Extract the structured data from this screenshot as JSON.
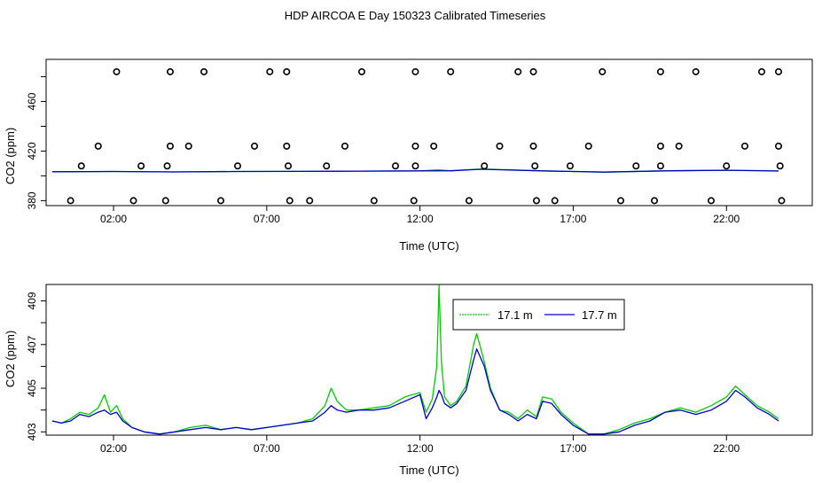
{
  "title": "HDP AIRCOA E  Day 150323  Calibrated Timeseries",
  "colors": {
    "green": "#00cc00",
    "blue": "#0000cc",
    "black": "#000000"
  },
  "chart_data": [
    {
      "type": "scatter",
      "xlabel": "Time (UTC)",
      "ylabel": "CO2 (ppm)",
      "xlim": [
        -0.2,
        24.8
      ],
      "ylim": [
        376,
        494
      ],
      "x_ticks": [
        2,
        7,
        12,
        17,
        22
      ],
      "x_tick_labels": [
        "02:00",
        "07:00",
        "12:00",
        "17:00",
        "22:00"
      ],
      "y_ticks": [
        380,
        420,
        460
      ],
      "y_tick_labels": [
        "380",
        "420",
        "460"
      ],
      "calibration_points": {
        "x": [
          2.1,
          3.85,
          4.95,
          7.1,
          7.65,
          10.1,
          11.85,
          13.0,
          15.2,
          15.7,
          17.95,
          19.85,
          21.0,
          23.15,
          23.7,
          1.5,
          3.85,
          4.45,
          6.6,
          7.65,
          9.55,
          11.85,
          12.45,
          14.6,
          15.7,
          17.5,
          19.85,
          20.45,
          22.6,
          23.7,
          0.95,
          2.9,
          3.75,
          6.05,
          7.7,
          8.95,
          11.2,
          11.85,
          14.1,
          15.75,
          16.9,
          19.05,
          19.85,
          22.0,
          23.75,
          0.6,
          2.65,
          3.7,
          5.5,
          7.75,
          8.4,
          10.5,
          11.8,
          13.6,
          15.8,
          16.4,
          18.55,
          19.65,
          21.5,
          23.8
        ],
        "y": [
          484,
          484,
          484,
          484,
          484,
          484,
          484,
          484,
          484,
          484,
          484,
          484,
          484,
          484,
          484,
          424,
          424,
          424,
          424,
          424,
          424,
          424,
          424,
          424,
          424,
          424,
          424,
          424,
          424,
          424,
          408,
          408,
          408,
          408,
          408,
          408,
          408,
          408,
          408,
          408,
          408,
          408,
          408,
          408,
          408,
          380,
          380,
          380,
          380,
          380,
          380,
          380,
          380,
          380,
          380,
          380,
          380,
          380,
          380,
          380
        ]
      },
      "series": [
        {
          "color": "#00cc00",
          "x": [
            0,
            2,
            4,
            6,
            8,
            10,
            12,
            12.6,
            13,
            14,
            16,
            18,
            20,
            22,
            23.7
          ],
          "y": [
            403.3,
            403.5,
            403.2,
            403.5,
            403.6,
            403.8,
            404.0,
            404.8,
            404.1,
            405.6,
            404.0,
            403.0,
            404.1,
            404.6,
            404.0
          ]
        },
        {
          "color": "#0000cc",
          "x": [
            0,
            2,
            4,
            6,
            8,
            10,
            12,
            13,
            14,
            16,
            18,
            20,
            22,
            23.7
          ],
          "y": [
            403.3,
            403.5,
            403.2,
            403.5,
            403.6,
            403.8,
            404.0,
            404.1,
            405.3,
            404.0,
            403.0,
            404.0,
            404.5,
            403.9
          ]
        }
      ]
    },
    {
      "type": "line",
      "xlabel": "Time (UTC)",
      "ylabel": "CO2 (ppm)",
      "xlim": [
        -0.2,
        24.8
      ],
      "ylim": [
        402.85,
        409.75
      ],
      "x_ticks": [
        2,
        7,
        12,
        17,
        22
      ],
      "x_tick_labels": [
        "02:00",
        "07:00",
        "12:00",
        "17:00",
        "22:00"
      ],
      "y_ticks": [
        403,
        405,
        407,
        409
      ],
      "y_tick_labels": [
        "403",
        "405",
        "407",
        "409"
      ],
      "legend": {
        "position": "top-center"
      },
      "series": [
        {
          "name": "17.1 m",
          "color": "#00cc00",
          "x": [
            0,
            0.3,
            0.6,
            0.9,
            1.2,
            1.5,
            1.7,
            1.9,
            2.1,
            2.3,
            2.6,
            3.0,
            3.5,
            4.0,
            4.5,
            5.0,
            5.5,
            6.0,
            6.5,
            7.0,
            7.5,
            8.0,
            8.5,
            8.9,
            9.1,
            9.3,
            9.6,
            10.0,
            10.5,
            11.0,
            11.5,
            12.0,
            12.2,
            12.4,
            12.55,
            12.62,
            12.7,
            12.8,
            13.0,
            13.2,
            13.5,
            13.75,
            13.85,
            14.1,
            14.3,
            14.6,
            14.9,
            15.2,
            15.5,
            15.8,
            16.0,
            16.3,
            16.6,
            17.0,
            17.5,
            18.0,
            18.5,
            19.0,
            19.5,
            20.0,
            20.5,
            21.0,
            21.5,
            22.0,
            22.3,
            22.6,
            23.0,
            23.4,
            23.7
          ],
          "y": [
            403.5,
            403.4,
            403.6,
            403.9,
            403.8,
            404.1,
            404.7,
            403.9,
            404.2,
            403.6,
            403.2,
            403.0,
            402.9,
            403.0,
            403.2,
            403.3,
            403.1,
            403.2,
            403.1,
            403.2,
            403.3,
            403.4,
            403.6,
            404.2,
            405.0,
            404.4,
            404.0,
            404.0,
            404.1,
            404.2,
            404.6,
            404.8,
            403.9,
            404.5,
            406.0,
            409.7,
            406.2,
            404.6,
            404.2,
            404.4,
            405.1,
            407.0,
            407.5,
            406.2,
            405.0,
            404.0,
            403.9,
            403.6,
            404.0,
            403.7,
            404.6,
            404.5,
            403.9,
            403.4,
            402.9,
            402.9,
            403.1,
            403.4,
            403.6,
            403.9,
            404.1,
            403.9,
            404.2,
            404.6,
            405.1,
            404.7,
            404.2,
            403.9,
            403.6
          ]
        },
        {
          "name": "17.7 m",
          "color": "#0000cc",
          "x": [
            0,
            0.3,
            0.6,
            0.9,
            1.2,
            1.5,
            1.7,
            1.9,
            2.1,
            2.3,
            2.6,
            3.0,
            3.5,
            4.0,
            4.5,
            5.0,
            5.5,
            6.0,
            6.5,
            7.0,
            7.5,
            8.0,
            8.5,
            8.9,
            9.1,
            9.3,
            9.6,
            10.0,
            10.5,
            11.0,
            11.5,
            12.0,
            12.2,
            12.4,
            12.55,
            12.62,
            12.7,
            12.8,
            13.0,
            13.2,
            13.5,
            13.75,
            13.85,
            14.1,
            14.3,
            14.6,
            14.9,
            15.2,
            15.5,
            15.8,
            16.0,
            16.3,
            16.6,
            17.0,
            17.5,
            18.0,
            18.5,
            19.0,
            19.5,
            20.0,
            20.5,
            21.0,
            21.5,
            22.0,
            22.3,
            22.6,
            23.0,
            23.4,
            23.7
          ],
          "y": [
            403.5,
            403.4,
            403.5,
            403.8,
            403.7,
            403.9,
            404.0,
            403.8,
            403.9,
            403.5,
            403.2,
            403.0,
            402.9,
            403.0,
            403.1,
            403.2,
            403.1,
            403.2,
            403.1,
            403.2,
            403.3,
            403.4,
            403.5,
            403.9,
            404.2,
            404.0,
            403.9,
            404.0,
            404.0,
            404.1,
            404.4,
            404.7,
            403.6,
            404.1,
            404.6,
            404.9,
            404.7,
            404.3,
            404.1,
            404.3,
            404.9,
            406.3,
            406.8,
            406.0,
            404.9,
            404.0,
            403.8,
            403.5,
            403.8,
            403.6,
            404.4,
            404.3,
            403.8,
            403.3,
            402.9,
            402.9,
            403.0,
            403.3,
            403.5,
            403.9,
            404.0,
            403.8,
            404.0,
            404.4,
            404.9,
            404.6,
            404.1,
            403.8,
            403.5
          ]
        }
      ]
    }
  ]
}
